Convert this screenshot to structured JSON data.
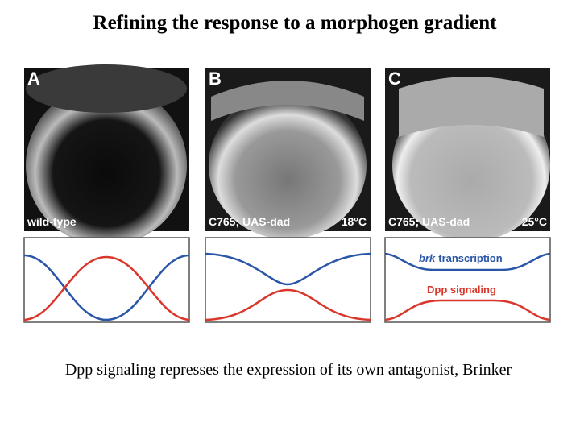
{
  "title": "Refining the response to a morphogen gradient",
  "panels": [
    {
      "letter": "A",
      "caption": "wild-type"
    },
    {
      "letter": "B",
      "caption": "C765; UAS-dad",
      "temperature": "18°C"
    },
    {
      "letter": "C",
      "caption": "C765; UAS-dad",
      "temperature": "25°C"
    }
  ],
  "legend": {
    "brk_gene": "brk",
    "brk_label": "transcription",
    "dpp_label": "Dpp signaling"
  },
  "caption": "Dpp signaling represses the expression of its own antagonist, Brinker"
}
